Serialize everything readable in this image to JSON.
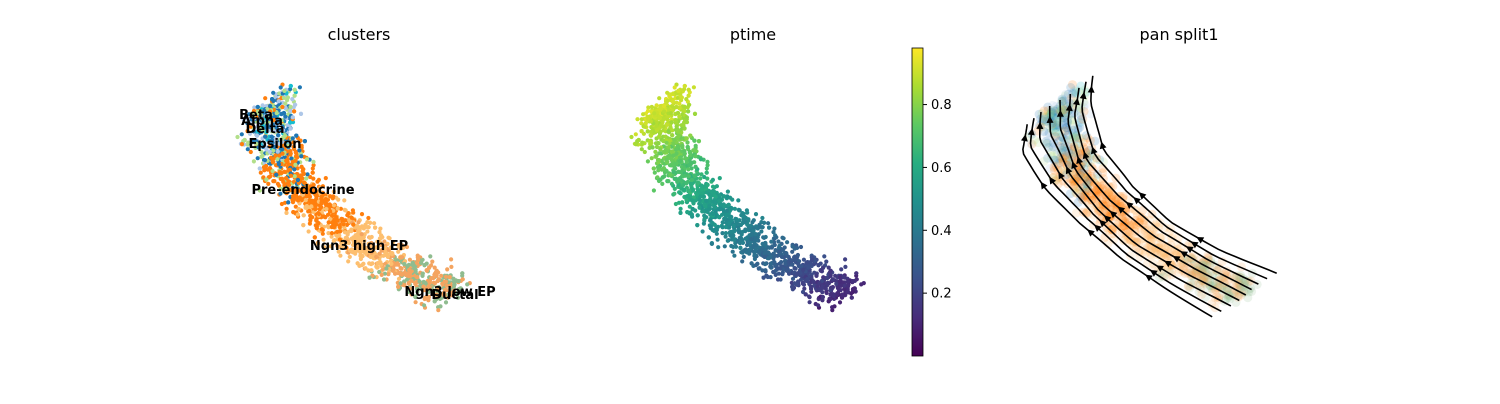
{
  "chart_data": [
    {
      "type": "scatter",
      "title": "clusters",
      "series": [
        {
          "name": "Ductal",
          "color": "#8fbc8f"
        },
        {
          "name": "Ngn3 low EP",
          "color": "#f4a460"
        },
        {
          "name": "Ngn3 high EP",
          "color": "#fdbf6f"
        },
        {
          "name": "Pre-endocrine",
          "color": "#ff7f0e"
        },
        {
          "name": "Beta",
          "color": "#1f77b4"
        },
        {
          "name": "Alpha",
          "color": "#aec7e8"
        },
        {
          "name": "Delta",
          "color": "#b2df8a"
        },
        {
          "name": "Epsilon",
          "color": "#17becf"
        }
      ],
      "labels": [
        "Beta",
        "Alpha",
        "Delta",
        "Epsilon",
        "Pre-endocrine",
        "Ngn3 high EP",
        "Ngn3 low EP",
        "Ductal"
      ],
      "axes": "off"
    },
    {
      "type": "scatter",
      "title": "ptime",
      "colormap": "viridis",
      "colorbar": {
        "ticks": [
          0.2,
          0.4,
          0.6,
          0.8
        ],
        "range": [
          0.0,
          0.98
        ]
      },
      "axes": "off"
    },
    {
      "type": "streamplot",
      "title": "pan split1",
      "background": "faded cluster colors",
      "arrow_color": "#000000",
      "axes": "off"
    }
  ]
}
